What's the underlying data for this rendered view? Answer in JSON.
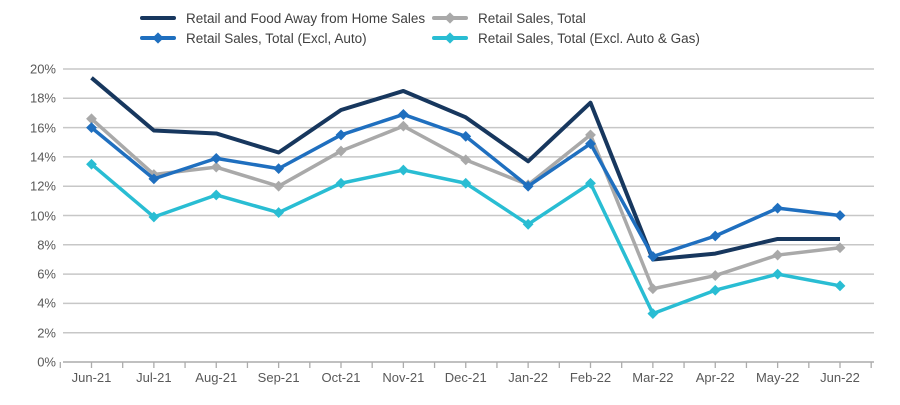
{
  "legend": {
    "items": [
      {
        "label": "Retail and Food Away from Home Sales",
        "color": "#17375E",
        "marker": "none"
      },
      {
        "label": "Retail Sales, Total (Excl, Auto)",
        "color": "#1F6FBF",
        "marker": "diamond"
      },
      {
        "label": "Retail Sales, Total",
        "color": "#A9A9A9",
        "marker": "diamond"
      },
      {
        "label": "Retail Sales, Total (Excl. Auto & Gas)",
        "color": "#29BDD3",
        "marker": "diamond"
      }
    ]
  },
  "chart_data": {
    "type": "line",
    "categories": [
      "Jun-21",
      "Jul-21",
      "Aug-21",
      "Sep-21",
      "Oct-21",
      "Nov-21",
      "Dec-21",
      "Jan-22",
      "Feb-22",
      "Mar-22",
      "Apr-22",
      "May-22",
      "Jun-22"
    ],
    "series": [
      {
        "name": "Retail and Food Away from Home Sales",
        "color": "#17375E",
        "marker": "none",
        "line_width": 4,
        "values": [
          19.4,
          15.8,
          15.6,
          14.3,
          17.2,
          18.5,
          16.7,
          13.7,
          17.7,
          7.0,
          7.4,
          8.4,
          8.4
        ]
      },
      {
        "name": "Retail Sales, Total (Excl, Auto)",
        "color": "#1F6FBF",
        "marker": "diamond",
        "line_width": 3.5,
        "values": [
          16.0,
          12.5,
          13.9,
          13.2,
          15.5,
          16.9,
          15.4,
          12.0,
          14.9,
          7.2,
          8.6,
          10.5,
          10.0
        ]
      },
      {
        "name": "Retail Sales, Total",
        "color": "#A9A9A9",
        "marker": "diamond",
        "line_width": 3.5,
        "values": [
          16.6,
          12.8,
          13.3,
          12.0,
          14.4,
          16.1,
          13.8,
          12.1,
          15.5,
          5.0,
          5.9,
          7.3,
          7.8
        ]
      },
      {
        "name": "Retail Sales, Total (Excl. Auto & Gas)",
        "color": "#29BDD3",
        "marker": "diamond",
        "line_width": 3.5,
        "values": [
          13.5,
          9.9,
          11.4,
          10.2,
          12.2,
          13.1,
          12.2,
          9.4,
          12.2,
          3.3,
          4.9,
          6.0,
          5.2
        ]
      }
    ],
    "ylim": [
      0,
      20
    ],
    "ytick_step": 2,
    "y_tick_labels": [
      "0%",
      "2%",
      "4%",
      "6%",
      "8%",
      "10%",
      "12%",
      "14%",
      "16%",
      "18%",
      "20%"
    ],
    "grid": "horizontal",
    "legend_position": "top",
    "draw_order": [
      2,
      3,
      0,
      1
    ],
    "colors": {
      "gridline": "#C7C7C7",
      "axis_line": "#ACACAC",
      "tick_label": "#595959",
      "legend_text": "#404040"
    }
  }
}
